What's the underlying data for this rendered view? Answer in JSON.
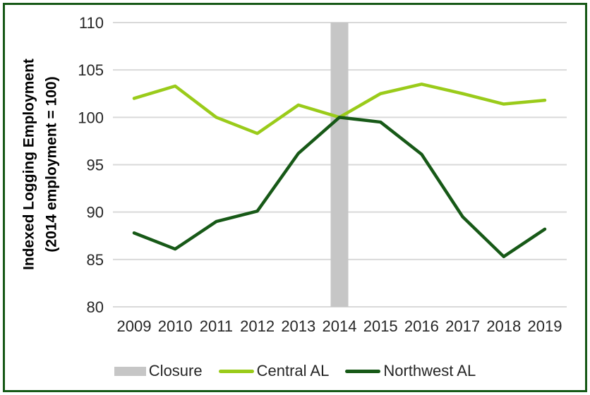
{
  "ui": {
    "background_color": "#FFFFFF",
    "frame_border_color": "#175917",
    "tick_text_color": "#262626",
    "axis_title_color": "#000000"
  },
  "chart_data": {
    "type": "line",
    "title": "",
    "xlabel": "",
    "ylabel_lines": [
      "Indexed Logging Employment",
      "(2014 employment = 100)"
    ],
    "categories": [
      "2009",
      "2010",
      "2011",
      "2012",
      "2013",
      "2014",
      "2015",
      "2016",
      "2017",
      "2018",
      "2019"
    ],
    "ylim": [
      80,
      110
    ],
    "yticks": [
      80,
      85,
      90,
      95,
      100,
      105,
      110
    ],
    "grid": "horizontal",
    "gridline_color": "#D9D9D9",
    "series": [
      {
        "name": "Central AL",
        "color": "#9ACB1A",
        "values": [
          102.0,
          103.3,
          100.0,
          98.3,
          101.3,
          100.0,
          102.5,
          103.5,
          102.5,
          101.4,
          101.8
        ]
      },
      {
        "name": "Northwest AL",
        "color": "#175917",
        "values": [
          87.8,
          86.1,
          89.0,
          90.1,
          96.2,
          100.0,
          99.5,
          96.1,
          89.5,
          85.3,
          88.2
        ]
      }
    ],
    "annotation": {
      "label": "Closure",
      "style": "vertical-band",
      "at_category": "2014",
      "color": "#C6C6C6"
    },
    "legend_position": "bottom",
    "legend": [
      {
        "label": "Closure",
        "swatch": "bar",
        "color": "#C6C6C6"
      },
      {
        "label": "Central AL",
        "swatch": "line",
        "color": "#9ACB1A"
      },
      {
        "label": "Northwest AL",
        "swatch": "line",
        "color": "#175917"
      }
    ]
  }
}
